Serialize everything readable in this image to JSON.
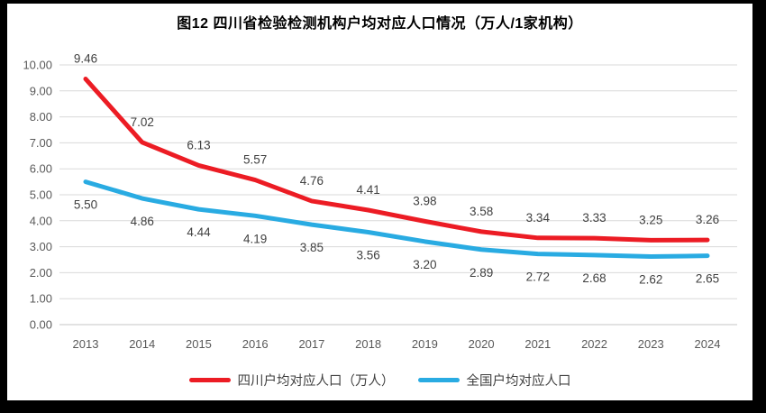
{
  "title": "图12 四川省检验检测机构户均对应人口情况（万人/1家机构）",
  "chart_data": {
    "type": "line",
    "title": "图12 四川省检验检测机构户均对应人口情况（万人/1家机构）",
    "categories": [
      "2013",
      "2014",
      "2015",
      "2016",
      "2017",
      "2018",
      "2019",
      "2020",
      "2021",
      "2022",
      "2023",
      "2024"
    ],
    "series": [
      {
        "name": "四川户均对应人口（万人）",
        "color": "#EC1C24",
        "values": [
          9.46,
          7.02,
          6.13,
          5.57,
          4.76,
          4.41,
          3.98,
          3.58,
          3.34,
          3.33,
          3.25,
          3.26
        ],
        "data_label_position": "above"
      },
      {
        "name": "全国户均对应人口",
        "color": "#29ABE2",
        "values": [
          5.5,
          4.86,
          4.44,
          4.19,
          3.85,
          3.56,
          3.2,
          2.89,
          2.72,
          2.68,
          2.62,
          2.65
        ],
        "data_label_position": "below"
      }
    ],
    "ylim": [
      0,
      10
    ],
    "ytick_step": 1,
    "yticks": [
      "0.00",
      "1.00",
      "2.00",
      "3.00",
      "4.00",
      "5.00",
      "6.00",
      "7.00",
      "8.00",
      "9.00",
      "10.00"
    ],
    "grid": true,
    "legend_position": "bottom",
    "colors": {
      "gridline": "#D9D9D9",
      "zero_line": "#C6C6C6",
      "axis_text": "#595959",
      "data_label": "#404040",
      "title_text": "#000000",
      "background": "#FFFFFF",
      "frame": "#000000"
    }
  }
}
